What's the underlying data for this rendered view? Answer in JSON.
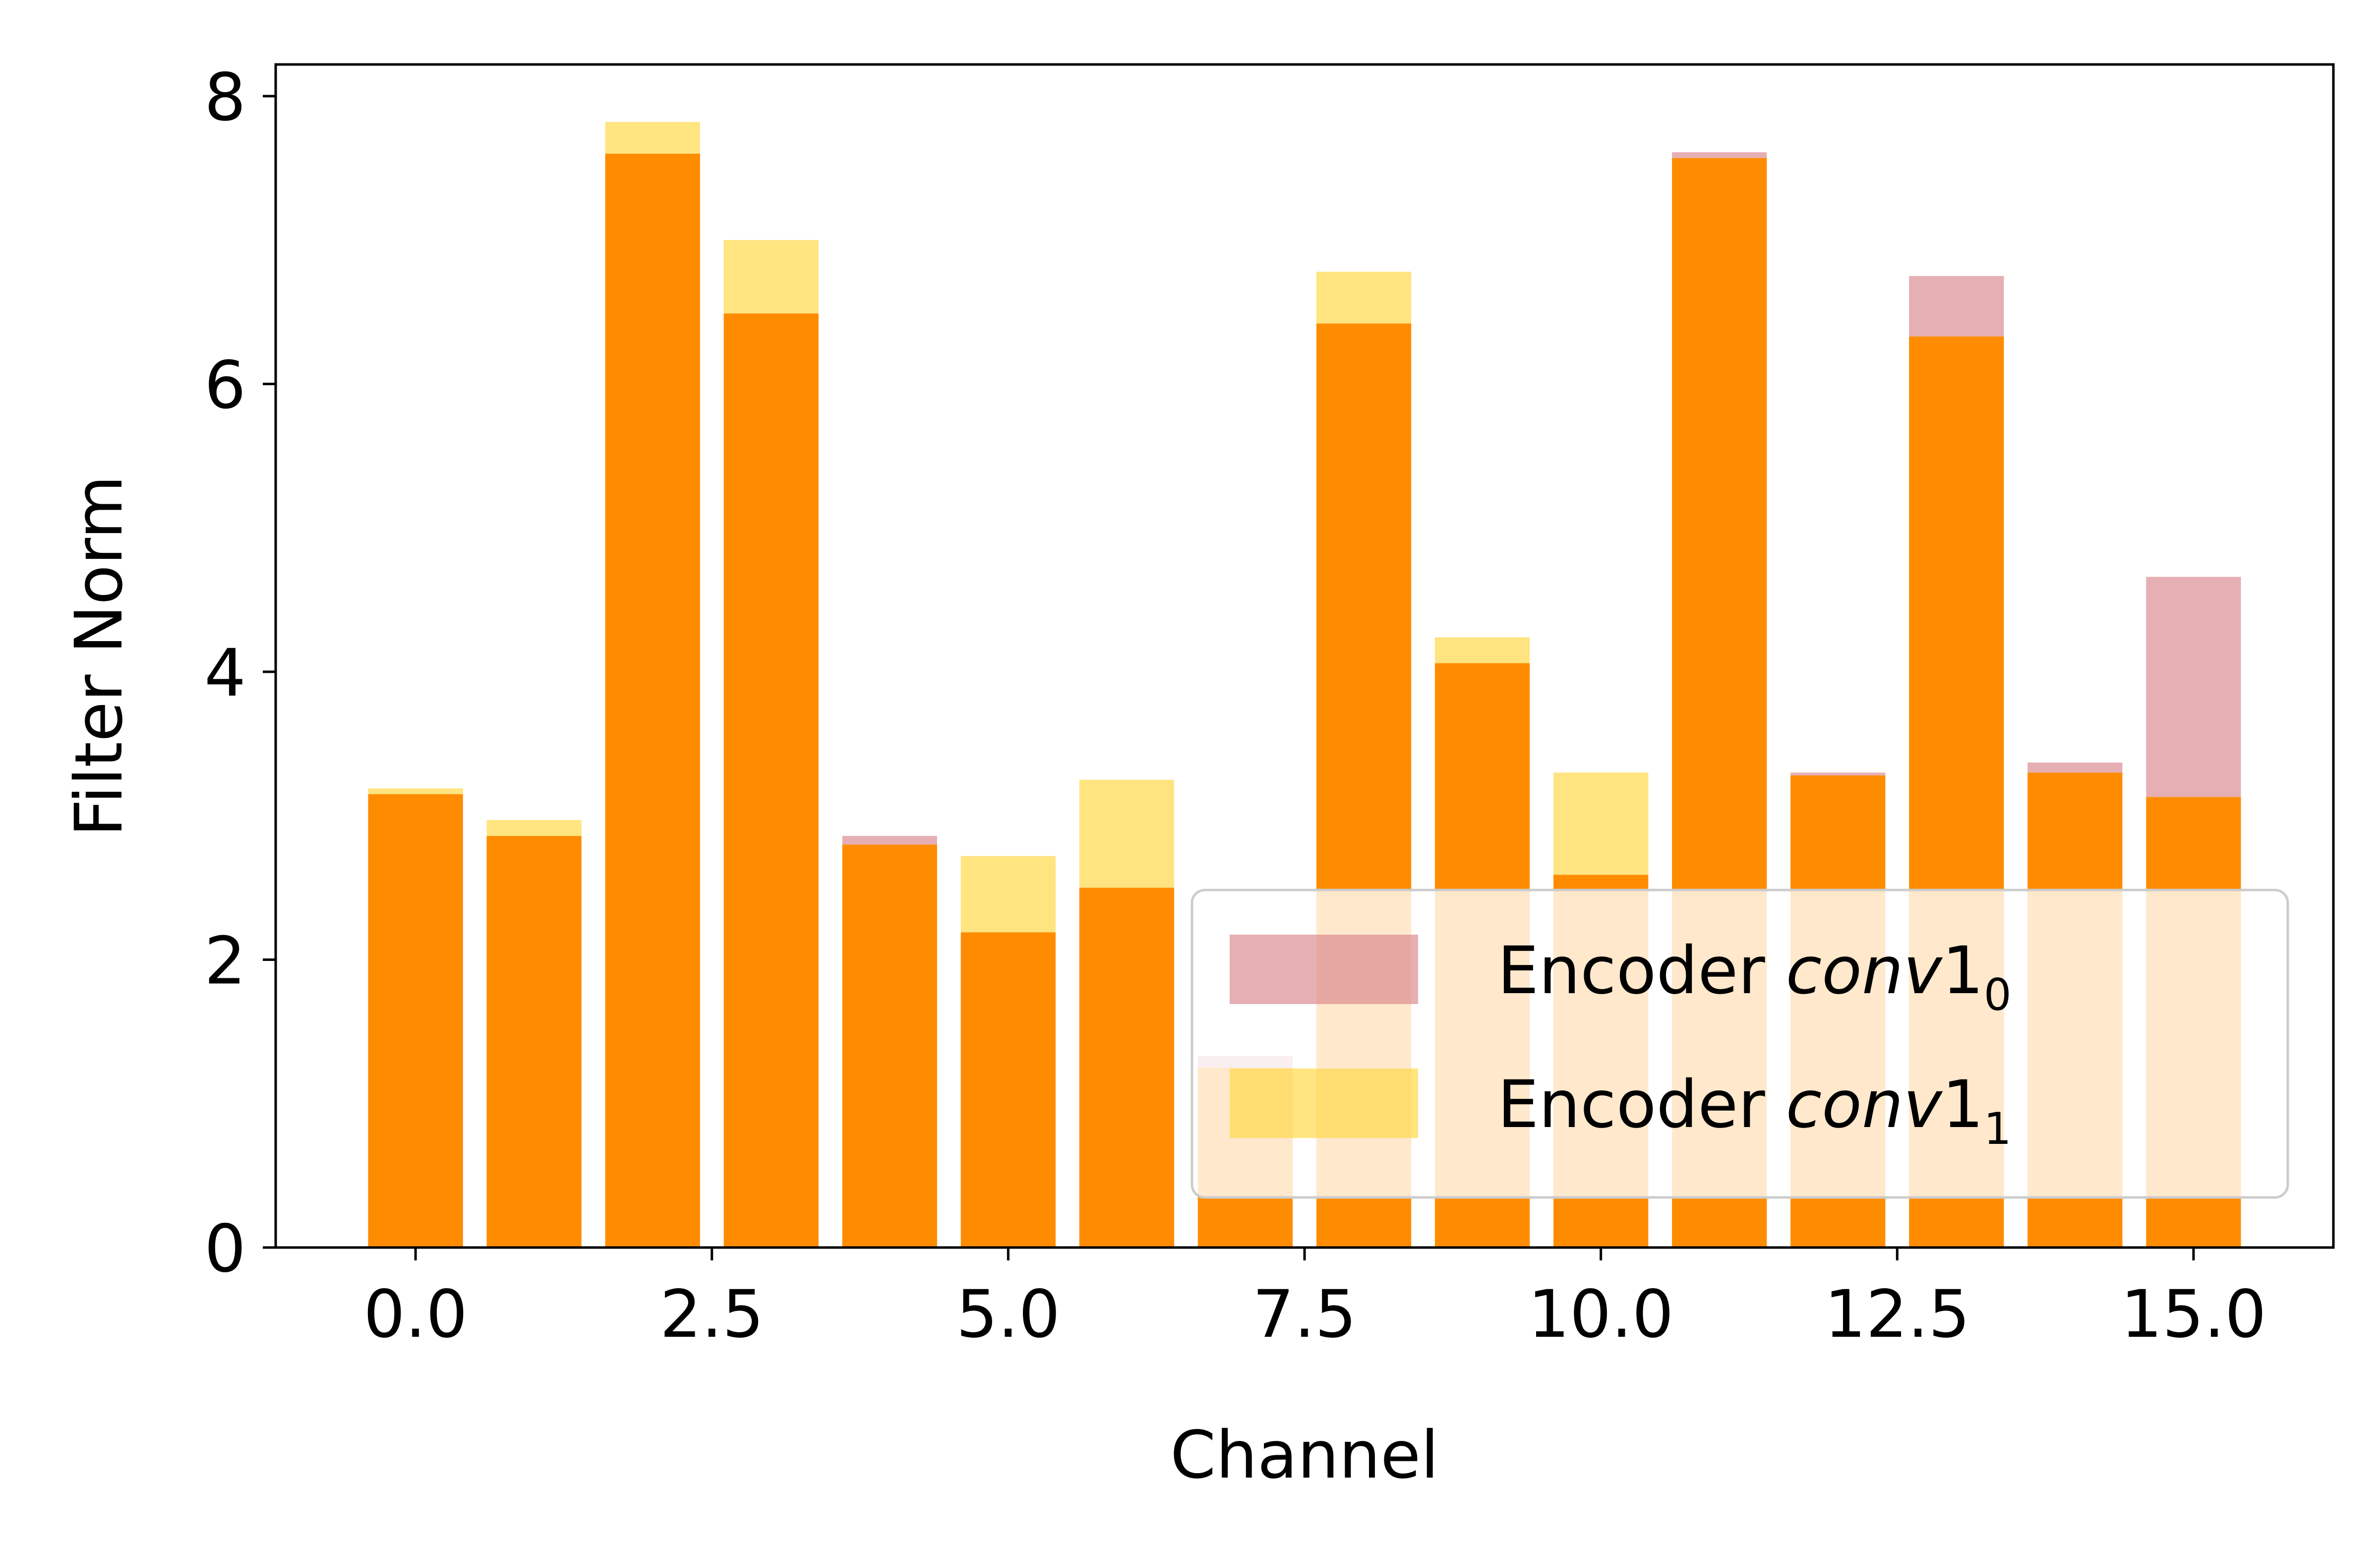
{
  "chart_data": {
    "type": "bar",
    "xlabel": "Channel",
    "ylabel": "Filter Norm",
    "xlim": [
      -1.18,
      16.18
    ],
    "ylim": [
      0,
      8.22
    ],
    "xticks": [
      0.0,
      2.5,
      5.0,
      7.5,
      10.0,
      12.5,
      15.0
    ],
    "xtick_labels": [
      "0.0",
      "2.5",
      "5.0",
      "7.5",
      "10.0",
      "12.5",
      "15.0"
    ],
    "yticks": [
      0,
      2,
      4,
      6,
      8
    ],
    "ytick_labels": [
      "0",
      "2",
      "4",
      "6",
      "8"
    ],
    "x": [
      0,
      1,
      2,
      3,
      4,
      5,
      6,
      7,
      8,
      9,
      10,
      11,
      12,
      13,
      14,
      15
    ],
    "bar_width": 0.8,
    "grid": false,
    "legend_position": "bottom-right",
    "overlap_color": "#ff8c00",
    "series": [
      {
        "name_main": "Encoder ",
        "name_italic": "conv",
        "name_digit": "1",
        "name_sub": "0",
        "color": "#d9848a",
        "opacity": 0.65,
        "values": [
          3.15,
          2.86,
          7.6,
          6.49,
          2.86,
          2.19,
          2.5,
          1.33,
          6.42,
          4.06,
          2.59,
          7.61,
          3.3,
          6.75,
          3.37,
          4.66
        ]
      },
      {
        "name_main": "Encoder ",
        "name_italic": "conv",
        "name_digit": "1",
        "name_sub": "1",
        "color": "#ffd84a",
        "opacity": 0.7,
        "values": [
          3.19,
          2.97,
          7.82,
          7.0,
          2.8,
          2.72,
          3.25,
          1.25,
          6.78,
          4.24,
          3.3,
          7.57,
          3.28,
          6.33,
          3.3,
          3.13
        ]
      }
    ]
  }
}
